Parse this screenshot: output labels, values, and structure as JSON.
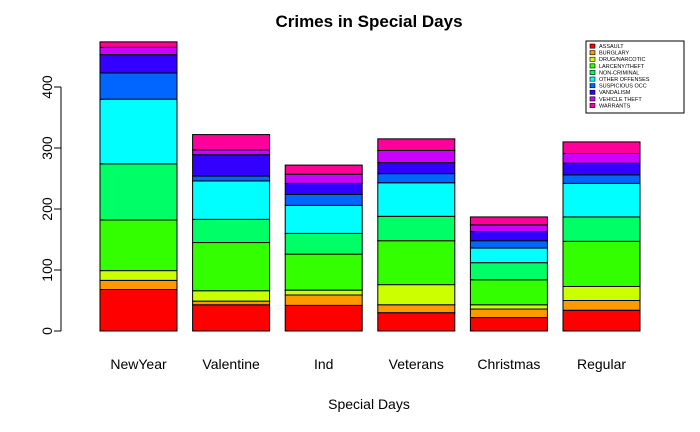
{
  "chart_data": {
    "type": "bar",
    "stacked": true,
    "title": "Crimes in Special Days",
    "xlabel": "Special Days",
    "ylabel": "",
    "ylim": [
      0,
      475
    ],
    "yticks": [
      0,
      100,
      200,
      300,
      400
    ],
    "legend_position": "top-right",
    "categories": [
      "NewYear",
      "Valentine",
      "Ind",
      "Veterans",
      "Christmas",
      "Regular"
    ],
    "series": [
      {
        "name": "ASSAULT",
        "color": "#FF0000",
        "values": [
          68,
          43,
          42,
          30,
          22,
          34
        ]
      },
      {
        "name": "BURGLARY",
        "color": "#FF9900",
        "values": [
          15,
          6,
          17,
          13,
          14,
          16
        ]
      },
      {
        "name": "DRUG/NARCOTIC",
        "color": "#CCFF00",
        "values": [
          16,
          17,
          8,
          33,
          7,
          23
        ]
      },
      {
        "name": "LARCENY/THEFT",
        "color": "#33FF00",
        "values": [
          83,
          79,
          59,
          72,
          41,
          74
        ]
      },
      {
        "name": "NON-CRIMINAL",
        "color": "#00FF66",
        "values": [
          92,
          38,
          34,
          40,
          28,
          40
        ]
      },
      {
        "name": "OTHER OFFENSES",
        "color": "#00FFFF",
        "values": [
          106,
          63,
          46,
          55,
          24,
          55
        ]
      },
      {
        "name": "SUSPICIOUS OCC",
        "color": "#0066FF",
        "values": [
          43,
          8,
          18,
          15,
          12,
          14
        ]
      },
      {
        "name": "VANDALISM",
        "color": "#3300FF",
        "values": [
          30,
          35,
          18,
          18,
          15,
          19
        ]
      },
      {
        "name": "VEHICLE THEFT",
        "color": "#CC00FF",
        "values": [
          12,
          8,
          15,
          20,
          11,
          16
        ]
      },
      {
        "name": "WARRANTS",
        "color": "#FF0099",
        "values": [
          9,
          25,
          15,
          19,
          13,
          19
        ]
      }
    ]
  }
}
